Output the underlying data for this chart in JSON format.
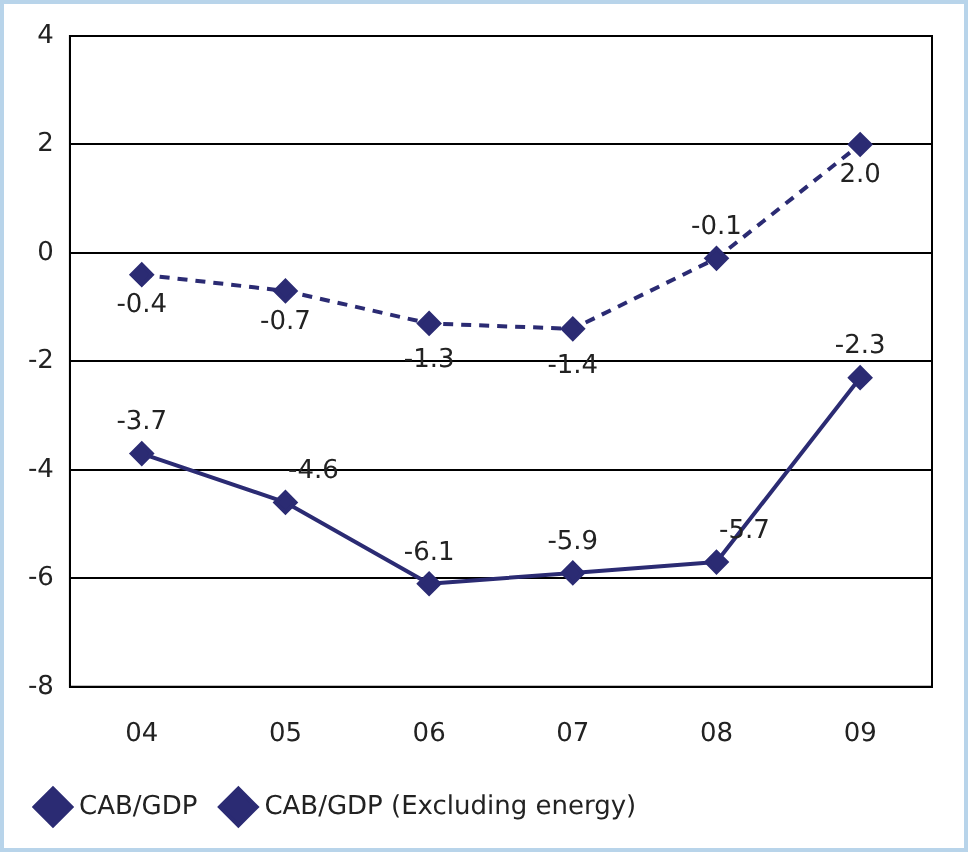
{
  "chart_data": {
    "type": "line",
    "categories": [
      "04",
      "05",
      "06",
      "07",
      "08",
      "09"
    ],
    "series": [
      {
        "name": "CAB/GDP",
        "color": "#2b2b73",
        "values": [
          -3.7,
          -4.6,
          -6.1,
          -5.9,
          -5.7,
          -2.3
        ],
        "value_labels": [
          "-3.7",
          "-4.6",
          "-6.1",
          "-5.9",
          "-5.7",
          "-2.3"
        ],
        "line_style": "solid"
      },
      {
        "name": "CAB/GDP (Excluding energy)",
        "color": "#2b2b73",
        "values": [
          -0.4,
          -0.7,
          -1.3,
          -1.4,
          -0.1,
          2.0
        ],
        "value_labels": [
          "-0.4",
          "-0.7",
          "-1.3",
          "-1.4",
          "-0.1",
          "2.0"
        ],
        "line_style": "dashed"
      }
    ],
    "ylim": [
      -8,
      4
    ],
    "yticks": [
      -8,
      -6,
      -4,
      -2,
      0,
      2,
      4
    ],
    "grid": "y",
    "legend": "bottom",
    "marker": "diamond"
  }
}
